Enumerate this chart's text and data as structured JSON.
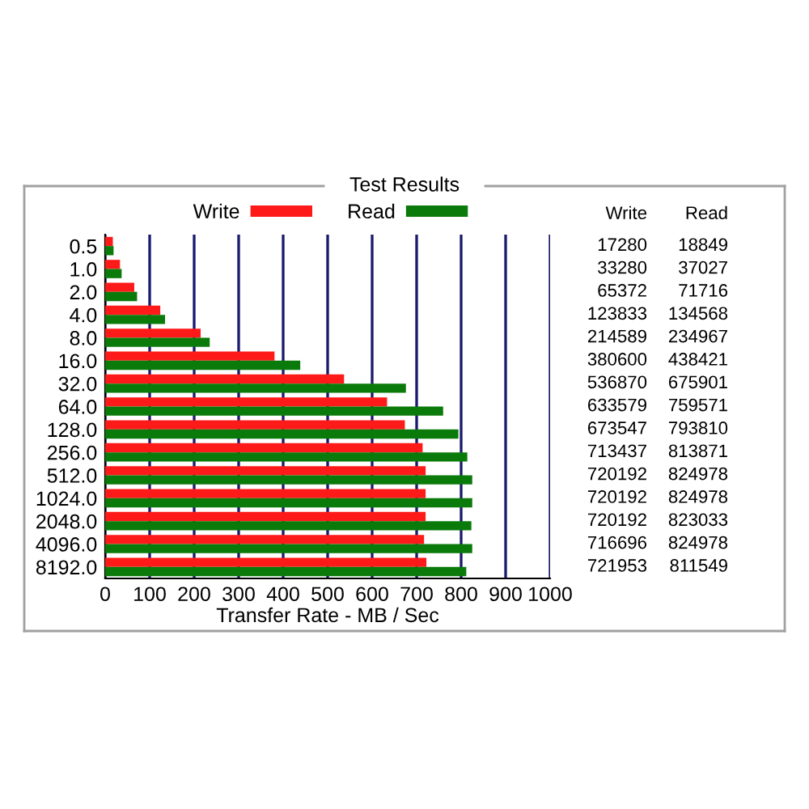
{
  "chart_data": {
    "type": "bar",
    "orientation": "horizontal",
    "title": "Test Results",
    "xlabel": "Transfer Rate - MB / Sec",
    "categories": [
      "0.5",
      "1.0",
      "2.0",
      "4.0",
      "8.0",
      "16.0",
      "32.0",
      "64.0",
      "128.0",
      "256.0",
      "512.0",
      "1024.0",
      "2048.0",
      "4096.0",
      "8192.0"
    ],
    "series": [
      {
        "name": "Write",
        "color": "#ff1a1a",
        "values": [
          17.28,
          33.28,
          65.372,
          123.833,
          214.589,
          380.6,
          536.87,
          633.579,
          673.547,
          713.437,
          720.192,
          720.192,
          720.192,
          716.696,
          721.953
        ]
      },
      {
        "name": "Read",
        "color": "#0a7a0a",
        "values": [
          18.849,
          37.027,
          71.716,
          134.568,
          234.967,
          438.421,
          675.901,
          759.571,
          793.81,
          813.871,
          824.978,
          824.978,
          823.033,
          824.978,
          811.549
        ]
      }
    ],
    "annotations": [
      "Write",
      "Read",
      "17280",
      "18849",
      "33280",
      "37027",
      "65372",
      "71716",
      "123833",
      "134568",
      "214589",
      "234967",
      "380600",
      "438421",
      "536870",
      "675901",
      "633579",
      "759571",
      "673547",
      "793810",
      "713437",
      "813871",
      "720192",
      "824978",
      "720192",
      "824978",
      "720192",
      "823033",
      "716696",
      "824978",
      "721953",
      "811549"
    ],
    "xlim": [
      0,
      1000
    ],
    "xticks": [
      0,
      100,
      200,
      300,
      400,
      500,
      600,
      700,
      800,
      900,
      1000
    ],
    "grid": "x",
    "legend": "top"
  }
}
